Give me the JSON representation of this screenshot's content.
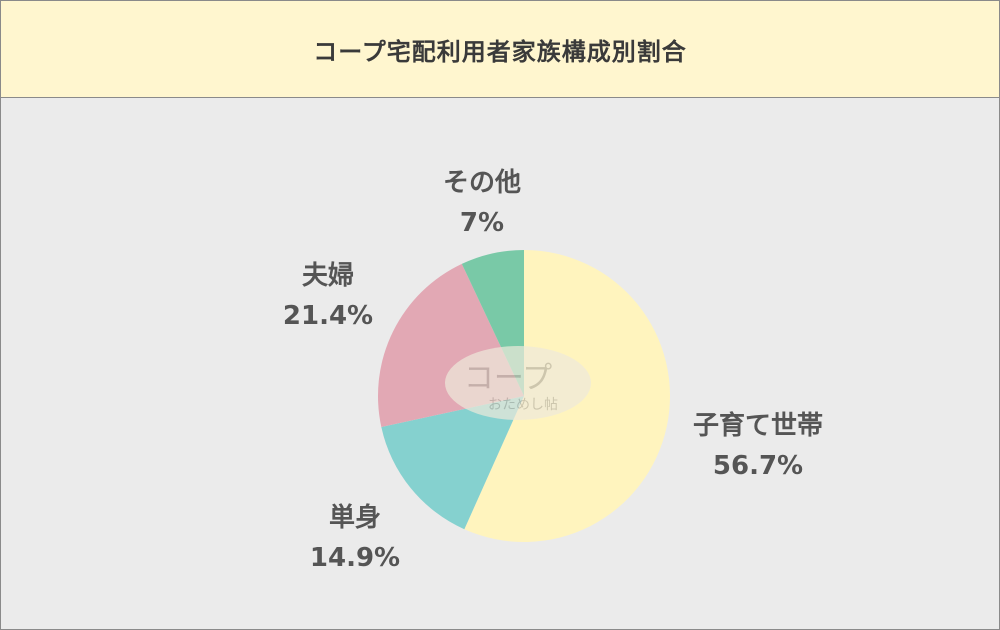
{
  "header": {
    "title": "コープ宅配利用者家族構成別割合"
  },
  "watermark": {
    "main": "コープ",
    "sub": "おためし帖"
  },
  "chart_data": {
    "type": "pie",
    "title": "コープ宅配利用者家族構成別割合",
    "start_angle_deg": 0,
    "direction": "clockwise",
    "slices": [
      {
        "label": "子育て世帯",
        "value": 56.7,
        "value_label": "56.7%",
        "color": "#fff4be"
      },
      {
        "label": "単身",
        "value": 14.9,
        "value_label": "14.9%",
        "color": "#85d1cf"
      },
      {
        "label": "夫婦",
        "value": 21.4,
        "value_label": "21.4%",
        "color": "#e2a8b4"
      },
      {
        "label": "その他",
        "value": 7,
        "value_label": "7%",
        "color": "#79c9a7"
      }
    ]
  }
}
